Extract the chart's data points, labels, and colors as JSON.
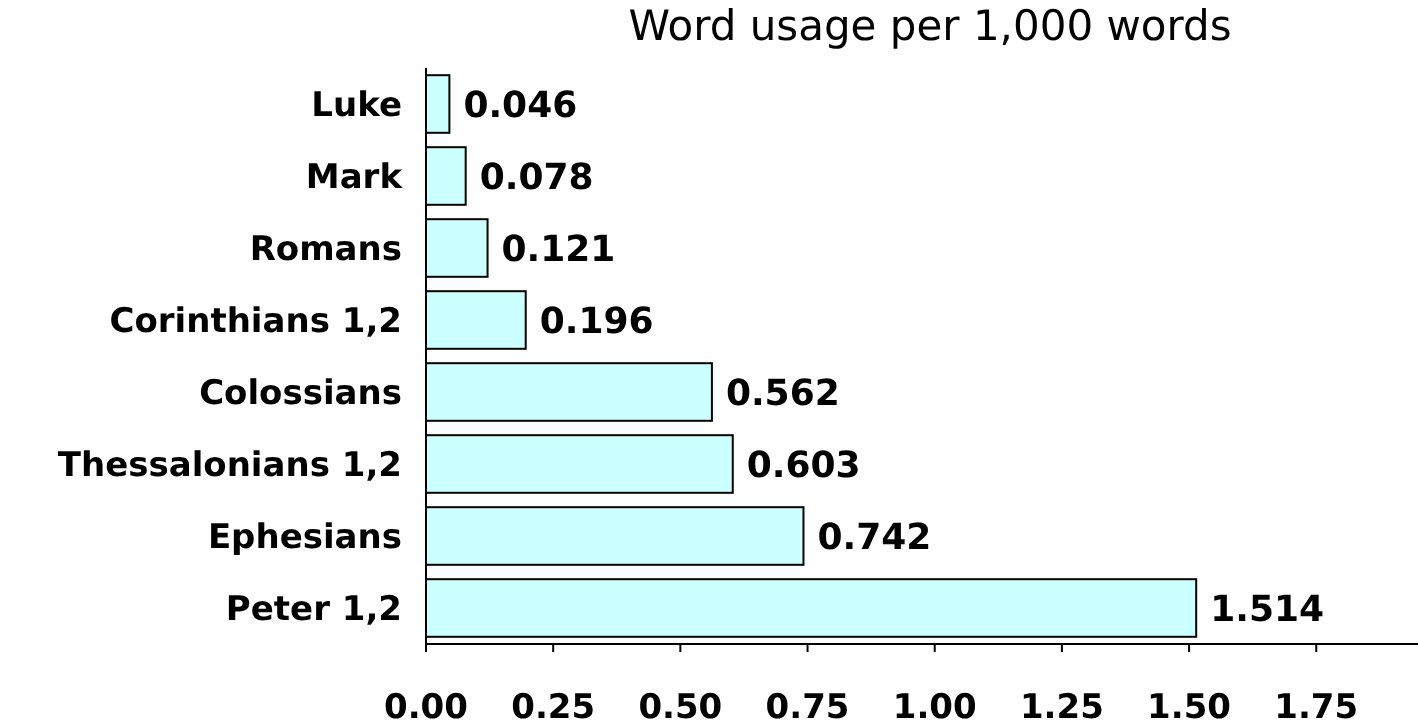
{
  "chart_data": {
    "type": "bar",
    "orientation": "horizontal",
    "title": "Word usage per 1,000 words",
    "categories": [
      "Luke",
      "Mark",
      "Romans",
      "Corinthians 1,2",
      "Colossians",
      "Thessalonians 1,2",
      "Ephesians",
      "Peter 1,2"
    ],
    "values": [
      0.046,
      0.078,
      0.121,
      0.196,
      0.562,
      0.603,
      0.742,
      1.514
    ],
    "color": "#ccffff",
    "data_labels": true,
    "grid": false,
    "xlim": [
      0,
      1.95
    ],
    "xticks": [
      {
        "value": 0,
        "label": "0.00"
      },
      {
        "value": 0.25,
        "label": "0.25"
      },
      {
        "value": 0.5,
        "label": "0.50"
      },
      {
        "value": 0.75,
        "label": "0.75"
      },
      {
        "value": 1,
        "label": "1.00"
      },
      {
        "value": 1.25,
        "label": "1.25"
      },
      {
        "value": 1.5,
        "label": "1.50"
      },
      {
        "value": 1.75,
        "label": "1.75"
      }
    ]
  }
}
